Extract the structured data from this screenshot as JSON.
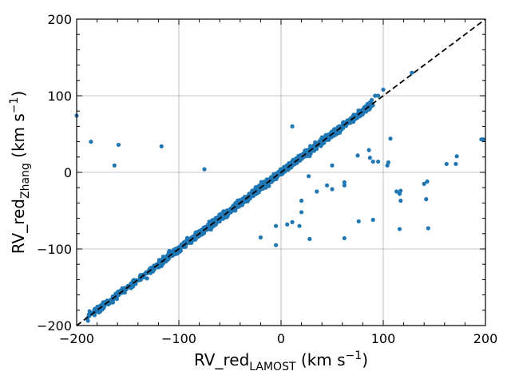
{
  "chart_data": {
    "type": "scatter",
    "xlabel": {
      "main": "RV_red",
      "sub": "LAMOST",
      "unit_pre": " (km s",
      "unit_sup": "−1",
      "unit_post": ")"
    },
    "ylabel": {
      "main": "RV_red",
      "sub": "Zhang",
      "unit_pre": " (km s",
      "unit_sup": "−1",
      "unit_post": ")"
    },
    "xlim": [
      -200,
      200
    ],
    "ylim": [
      -200,
      200
    ],
    "xticks": [
      -200,
      -100,
      0,
      100,
      200
    ],
    "yticks": [
      -200,
      -100,
      0,
      100,
      200
    ],
    "xtick_labels": [
      "−200",
      "−100",
      "0",
      "100",
      "200"
    ],
    "ytick_labels": [
      "−200",
      "−100",
      "0",
      "100",
      "200"
    ],
    "grid": true,
    "point_color": "#1f77b4",
    "reference_line": {
      "x": [
        -200,
        200
      ],
      "y": [
        -200,
        200
      ],
      "style": "dashed",
      "color": "#000000"
    },
    "main_cluster": {
      "x_range": [
        -190,
        90
      ],
      "relation": "y = x",
      "scatter": 4
    },
    "outliers": [
      {
        "x": -200,
        "y": 74
      },
      {
        "x": -186,
        "y": 40
      },
      {
        "x": -159,
        "y": 36
      },
      {
        "x": -163,
        "y": 9
      },
      {
        "x": -117,
        "y": 34
      },
      {
        "x": -75,
        "y": 4
      },
      {
        "x": -20,
        "y": -85
      },
      {
        "x": -5,
        "y": -95
      },
      {
        "x": -5,
        "y": -70
      },
      {
        "x": 6,
        "y": -68
      },
      {
        "x": 11,
        "y": 60
      },
      {
        "x": 11,
        "y": -65
      },
      {
        "x": 18,
        "y": -70
      },
      {
        "x": 20,
        "y": -37
      },
      {
        "x": 20,
        "y": -52
      },
      {
        "x": 28,
        "y": -87
      },
      {
        "x": 27,
        "y": -5
      },
      {
        "x": 35,
        "y": -25
      },
      {
        "x": 45,
        "y": -17
      },
      {
        "x": 50,
        "y": -22
      },
      {
        "x": 50,
        "y": 9
      },
      {
        "x": 62,
        "y": -13
      },
      {
        "x": 62,
        "y": -17
      },
      {
        "x": 62,
        "y": -86
      },
      {
        "x": 75,
        "y": 22
      },
      {
        "x": 76,
        "y": -64
      },
      {
        "x": 86,
        "y": 29
      },
      {
        "x": 87,
        "y": 19
      },
      {
        "x": 90,
        "y": -62
      },
      {
        "x": 90,
        "y": 14
      },
      {
        "x": 95,
        "y": 14
      },
      {
        "x": 92,
        "y": 100
      },
      {
        "x": 95,
        "y": 100
      },
      {
        "x": 100,
        "y": 108
      },
      {
        "x": 104,
        "y": 9
      },
      {
        "x": 105,
        "y": 13
      },
      {
        "x": 107,
        "y": 44
      },
      {
        "x": 113,
        "y": -25
      },
      {
        "x": 116,
        "y": -28
      },
      {
        "x": 117,
        "y": -37
      },
      {
        "x": 116,
        "y": -74
      },
      {
        "x": 117,
        "y": -24
      },
      {
        "x": 128,
        "y": 130
      },
      {
        "x": 140,
        "y": -15
      },
      {
        "x": 142,
        "y": -35
      },
      {
        "x": 143,
        "y": -12
      },
      {
        "x": 144,
        "y": -73
      },
      {
        "x": 162,
        "y": 11
      },
      {
        "x": 171,
        "y": 11
      },
      {
        "x": 172,
        "y": 21
      },
      {
        "x": 196,
        "y": 43
      },
      {
        "x": 198,
        "y": 43
      }
    ]
  }
}
